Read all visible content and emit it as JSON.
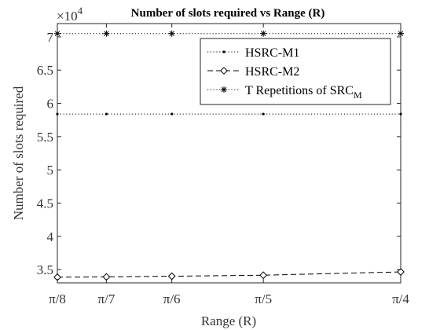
{
  "chart_data": {
    "type": "line",
    "title": "Number of slots required vs Range (R)",
    "xlabel": "Range (R)",
    "ylabel": "Number of slots required",
    "y_exponent_base": "×10",
    "y_exponent_power": "4",
    "x_ticks": [
      {
        "value": 0.3927,
        "label": "π/8"
      },
      {
        "value": 0.4488,
        "label": "π/7"
      },
      {
        "value": 0.5236,
        "label": "π/6"
      },
      {
        "value": 0.6283,
        "label": "π/5"
      },
      {
        "value": 0.7854,
        "label": "π/4"
      }
    ],
    "y_ticks": [
      {
        "value": 3.5,
        "label": "3.5"
      },
      {
        "value": 4,
        "label": "4"
      },
      {
        "value": 4.5,
        "label": "4.5"
      },
      {
        "value": 5,
        "label": "5"
      },
      {
        "value": 5.5,
        "label": "5.5"
      },
      {
        "value": 6,
        "label": "6"
      },
      {
        "value": 6.5,
        "label": "6.5"
      },
      {
        "value": 7,
        "label": "7"
      }
    ],
    "xlim": [
      0.3927,
      0.7854
    ],
    "ylim": [
      3.3,
      7.2
    ],
    "grid": false,
    "legend_position": "top-right",
    "x": [
      0.3927,
      0.4488,
      0.5236,
      0.6283,
      0.7854
    ],
    "series": [
      {
        "name": "HSRC-M1",
        "marker": "dot",
        "line": "dotted",
        "values": [
          5.84,
          5.84,
          5.84,
          5.84,
          5.84
        ]
      },
      {
        "name": "HSRC-M2",
        "marker": "diamond",
        "line": "dashed",
        "values": [
          3.385,
          3.39,
          3.4,
          3.415,
          3.465
        ]
      },
      {
        "name": "T Repetitions of SRC",
        "name_subscript": "M",
        "marker": "asterisk",
        "line": "dotted",
        "values": [
          7.05,
          7.05,
          7.05,
          7.05,
          7.05
        ]
      }
    ]
  }
}
